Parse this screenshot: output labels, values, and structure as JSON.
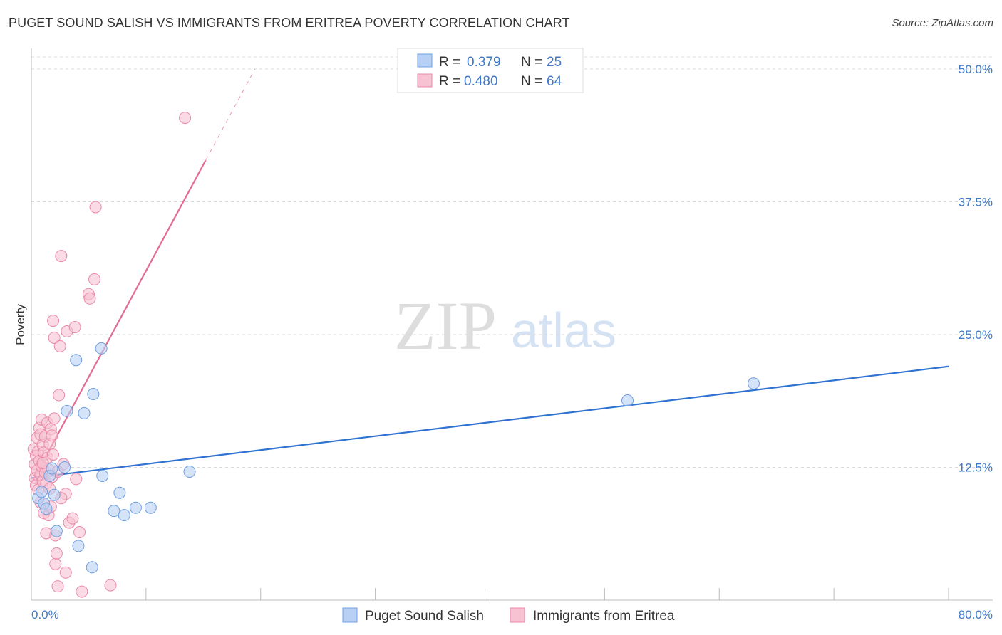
{
  "header": {
    "title": "PUGET SOUND SALISH VS IMMIGRANTS FROM ERITREA POVERTY CORRELATION CHART",
    "source": "Source: ZipAtlas.com"
  },
  "watermark": {
    "zip": "ZIP",
    "atlas": "atlas"
  },
  "colors": {
    "blue_fill": "#b7d0f3",
    "blue_stroke": "#6f9fe0",
    "blue_line": "#2f72d1",
    "pink_fill": "#f7c2d2",
    "pink_stroke": "#ea8aa8",
    "pink_line": "#e36a95",
    "grid": "#d9d9d9",
    "axis": "#bbbbbb",
    "tick_text": "#3e78c9"
  },
  "legend": {
    "entries": [
      {
        "r_label": "R =",
        "r_value": "0.379",
        "n_label": "N =",
        "n_value": "25"
      },
      {
        "r_label": "R =",
        "r_value": "0.480",
        "n_label": "N =",
        "n_value": "64"
      }
    ]
  },
  "chart_data": {
    "type": "scatter",
    "title": "PUGET SOUND SALISH VS IMMIGRANTS FROM ERITREA POVERTY CORRELATION CHART",
    "xlabel": "",
    "ylabel": "Poverty",
    "xlim": [
      0,
      80
    ],
    "ylim": [
      0,
      50
    ],
    "x_tick_labels": [
      "0.0%",
      "80.0%"
    ],
    "y_ticks": [
      12.5,
      25.0,
      37.5,
      50.0
    ],
    "y_tick_labels": [
      "12.5%",
      "25.0%",
      "37.5%",
      "50.0%"
    ],
    "grid": true,
    "series": [
      {
        "name": "Puget Sound Salish",
        "color": "blue",
        "r": 0.379,
        "n": 25,
        "trend": {
          "x": [
            0,
            80
          ],
          "y": [
            11.5,
            22.0
          ],
          "dash_from": null
        },
        "points": [
          [
            0.6,
            9.6
          ],
          [
            0.9,
            10.2
          ],
          [
            1.1,
            9.1
          ],
          [
            1.3,
            8.6
          ],
          [
            1.6,
            11.7
          ],
          [
            1.8,
            12.4
          ],
          [
            2.0,
            9.9
          ],
          [
            2.2,
            6.5
          ],
          [
            2.9,
            12.5
          ],
          [
            3.1,
            17.8
          ],
          [
            3.9,
            22.6
          ],
          [
            4.1,
            5.1
          ],
          [
            4.6,
            17.6
          ],
          [
            5.3,
            3.1
          ],
          [
            5.4,
            19.4
          ],
          [
            6.1,
            23.7
          ],
          [
            6.2,
            11.7
          ],
          [
            7.2,
            8.4
          ],
          [
            7.7,
            10.1
          ],
          [
            8.1,
            8.0
          ],
          [
            9.1,
            8.7
          ],
          [
            10.4,
            8.7
          ],
          [
            13.8,
            12.1
          ],
          [
            52.0,
            18.8
          ],
          [
            63.0,
            20.4
          ]
        ]
      },
      {
        "name": "Immigrants from Eritrea",
        "color": "pink",
        "r": 0.48,
        "n": 64,
        "trend": {
          "x": [
            0,
            19.5
          ],
          "y": [
            11.0,
            50.0
          ],
          "dash_from": 15.2
        },
        "points": [
          [
            0.2,
            14.2
          ],
          [
            0.3,
            12.8
          ],
          [
            0.3,
            11.5
          ],
          [
            0.4,
            10.8
          ],
          [
            0.4,
            13.6
          ],
          [
            0.5,
            15.3
          ],
          [
            0.5,
            12.2
          ],
          [
            0.6,
            14.0
          ],
          [
            0.6,
            10.4
          ],
          [
            0.7,
            16.2
          ],
          [
            0.7,
            13.1
          ],
          [
            0.8,
            11.8
          ],
          [
            0.8,
            15.6
          ],
          [
            0.9,
            12.6
          ],
          [
            0.9,
            17.0
          ],
          [
            1.0,
            14.6
          ],
          [
            1.0,
            11.2
          ],
          [
            1.1,
            13.9
          ],
          [
            1.1,
            8.2
          ],
          [
            1.2,
            15.4
          ],
          [
            1.2,
            12.0
          ],
          [
            1.3,
            6.3
          ],
          [
            1.3,
            11.0
          ],
          [
            1.4,
            13.4
          ],
          [
            1.4,
            16.7
          ],
          [
            1.5,
            8.0
          ],
          [
            1.5,
            12.3
          ],
          [
            1.6,
            14.7
          ],
          [
            1.6,
            10.5
          ],
          [
            1.7,
            16.1
          ],
          [
            1.7,
            8.8
          ],
          [
            1.8,
            11.6
          ],
          [
            1.8,
            15.5
          ],
          [
            1.9,
            26.3
          ],
          [
            1.9,
            13.7
          ],
          [
            2.0,
            17.1
          ],
          [
            2.0,
            24.7
          ],
          [
            2.1,
            3.4
          ],
          [
            2.1,
            6.1
          ],
          [
            2.2,
            4.4
          ],
          [
            2.3,
            12.1
          ],
          [
            2.3,
            1.3
          ],
          [
            2.4,
            19.3
          ],
          [
            2.5,
            23.9
          ],
          [
            2.6,
            32.4
          ],
          [
            2.8,
            12.8
          ],
          [
            3.0,
            2.6
          ],
          [
            3.0,
            10.0
          ],
          [
            3.1,
            25.3
          ],
          [
            3.3,
            7.3
          ],
          [
            3.6,
            7.7
          ],
          [
            3.8,
            25.7
          ],
          [
            3.9,
            11.4
          ],
          [
            4.2,
            6.4
          ],
          [
            4.4,
            0.8
          ],
          [
            5.0,
            28.8
          ],
          [
            5.1,
            28.4
          ],
          [
            5.5,
            30.2
          ],
          [
            5.6,
            37.0
          ],
          [
            6.9,
            1.4
          ],
          [
            13.4,
            45.4
          ],
          [
            0.8,
            9.2
          ],
          [
            2.6,
            9.6
          ],
          [
            1.0,
            12.9
          ]
        ]
      }
    ]
  },
  "bottom_legend": {
    "items": [
      "Puget Sound Salish",
      "Immigrants from Eritrea"
    ]
  }
}
